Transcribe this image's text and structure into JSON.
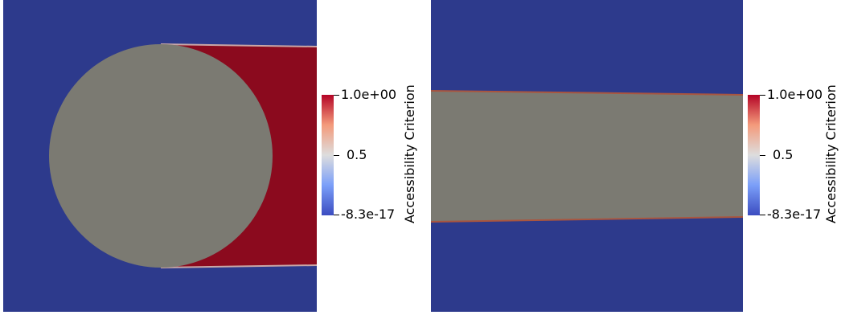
{
  "colors": {
    "background_field": "#2d3a8c",
    "solid_region": "#7b7a72",
    "accessible_region": "#8b0a1e",
    "colormap_low": "#3b4cc0",
    "colormap_mid": "#dddddd",
    "colormap_high": "#b40426"
  },
  "left_panel": {
    "colorbar": {
      "title": "Accessibility Criterion",
      "max_label": "1.0e+00",
      "mid_label": "0.5",
      "min_label": "-8.3e-17"
    }
  },
  "right_panel": {
    "colorbar": {
      "title": "Accessibility Criterion",
      "max_label": "1.0e+00",
      "mid_label": "0.5",
      "min_label": "-8.3e-17"
    }
  }
}
